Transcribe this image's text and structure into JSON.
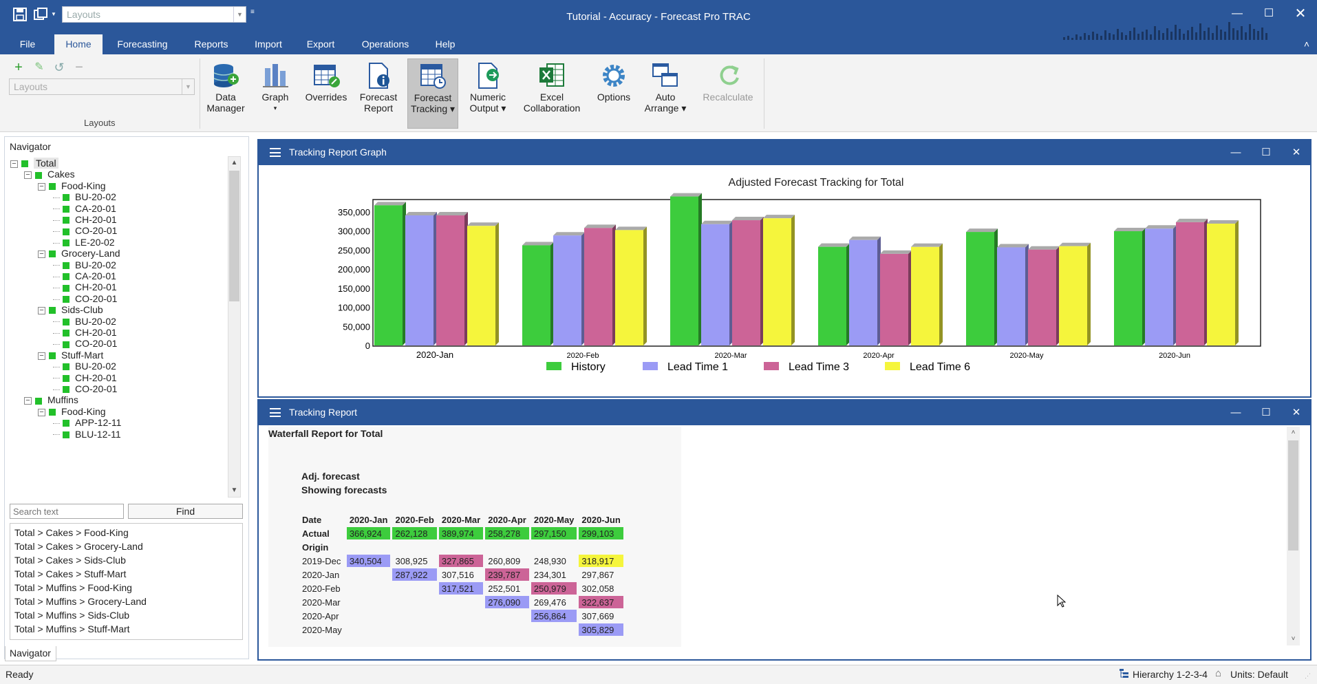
{
  "window": {
    "title": "Tutorial - Accuracy - Forecast Pro TRAC",
    "layouts_placeholder": "Layouts"
  },
  "menu": {
    "tabs": [
      "File",
      "Home",
      "Forecasting",
      "Reports",
      "Import",
      "Export",
      "Operations",
      "Help"
    ],
    "active": "Home"
  },
  "ribbon": {
    "layouts_placeholder": "Layouts",
    "layouts_group_label": "Layouts",
    "buttons": {
      "data_manager": [
        "Data",
        "Manager"
      ],
      "graph": [
        "Graph",
        "▾"
      ],
      "overrides": [
        "Overrides",
        ""
      ],
      "forecast_report": [
        "Forecast",
        "Report"
      ],
      "forecast_tracking": [
        "Forecast",
        "Tracking ▾"
      ],
      "numeric_output": [
        "Numeric",
        "Output ▾"
      ],
      "excel_collaboration": [
        "Excel",
        "Collaboration"
      ],
      "options": [
        "Options",
        ""
      ],
      "auto_arrange": [
        "Auto",
        "Arrange ▾"
      ],
      "recalculate": [
        "Recalculate",
        ""
      ]
    }
  },
  "navigator": {
    "title": "Navigator",
    "tree": [
      {
        "label": "Total",
        "level": 0,
        "toggle": "−",
        "selected": true
      },
      {
        "label": "Cakes",
        "level": 1,
        "toggle": "−"
      },
      {
        "label": "Food-King",
        "level": 2,
        "toggle": "−"
      },
      {
        "label": "BU-20-02",
        "level": 3
      },
      {
        "label": "CA-20-01",
        "level": 3
      },
      {
        "label": "CH-20-01",
        "level": 3
      },
      {
        "label": "CO-20-01",
        "level": 3
      },
      {
        "label": "LE-20-02",
        "level": 3
      },
      {
        "label": "Grocery-Land",
        "level": 2,
        "toggle": "−"
      },
      {
        "label": "BU-20-02",
        "level": 3
      },
      {
        "label": "CA-20-01",
        "level": 3
      },
      {
        "label": "CH-20-01",
        "level": 3
      },
      {
        "label": "CO-20-01",
        "level": 3
      },
      {
        "label": "Sids-Club",
        "level": 2,
        "toggle": "−"
      },
      {
        "label": "BU-20-02",
        "level": 3
      },
      {
        "label": "CH-20-01",
        "level": 3
      },
      {
        "label": "CO-20-01",
        "level": 3
      },
      {
        "label": "Stuff-Mart",
        "level": 2,
        "toggle": "−"
      },
      {
        "label": "BU-20-02",
        "level": 3
      },
      {
        "label": "CH-20-01",
        "level": 3
      },
      {
        "label": "CO-20-01",
        "level": 3
      },
      {
        "label": "Muffins",
        "level": 1,
        "toggle": "−"
      },
      {
        "label": "Food-King",
        "level": 2,
        "toggle": "−"
      },
      {
        "label": "APP-12-11",
        "level": 3
      },
      {
        "label": "BLU-12-11",
        "level": 3
      }
    ],
    "search_placeholder": "Search text",
    "find_label": "Find",
    "paths": [
      "Total > Cakes > Food-King",
      "Total > Cakes > Grocery-Land",
      "Total > Cakes > Sids-Club",
      "Total > Cakes > Stuff-Mart",
      "Total > Muffins > Food-King",
      "Total > Muffins > Grocery-Land",
      "Total > Muffins > Sids-Club",
      "Total > Muffins > Stuff-Mart"
    ],
    "tab_label": "Navigator"
  },
  "graph_panel": {
    "title": "Tracking Report Graph"
  },
  "chart_data": {
    "type": "bar",
    "title": "Adjusted Forecast Tracking for Total",
    "categories": [
      "2020-Jan",
      "2020-Feb",
      "2020-Mar",
      "2020-Apr",
      "2020-May",
      "2020-Jun"
    ],
    "series": [
      {
        "name": "History",
        "color": "#3dcc3d",
        "values": [
          366924,
          262128,
          389974,
          258278,
          297150,
          299103
        ]
      },
      {
        "name": "Lead Time 1",
        "color": "#9b9bf5",
        "values": [
          340504,
          287922,
          317521,
          276090,
          256864,
          305829
        ]
      },
      {
        "name": "Lead Time 3",
        "color": "#cc6497",
        "values": [
          340504,
          307516,
          327865,
          239787,
          250979,
          322637
        ]
      },
      {
        "name": "Lead Time 6",
        "color": "#f5f53c",
        "values": [
          313000,
          302058,
          333000,
          258000,
          260000,
          318917
        ]
      }
    ],
    "ylim": [
      0,
      400000
    ],
    "yticks": [
      "0",
      "50,000",
      "100,000",
      "150,000",
      "200,000",
      "250,000",
      "300,000",
      "350,000"
    ],
    "legend_position": "bottom"
  },
  "report_panel": {
    "title": "Tracking Report",
    "report_title": "Waterfall Report for Total",
    "subtitle1": "Adj. forecast",
    "subtitle2": "Showing forecasts",
    "date_label": "Date",
    "actual_label": "Actual",
    "origin_label": "Origin",
    "columns": [
      "2020-Jan",
      "2020-Feb",
      "2020-Mar",
      "2020-Apr",
      "2020-May",
      "2020-Jun"
    ],
    "actual": [
      "366,924",
      "262,128",
      "389,974",
      "258,278",
      "297,150",
      "299,103"
    ],
    "rows": [
      {
        "origin": "2019-Dec",
        "cells": [
          "340,504",
          "308,925",
          "327,865",
          "260,809",
          "248,930",
          "318,917"
        ],
        "colors": [
          "#9b9bf5",
          "",
          "#cc6497",
          "",
          "",
          "#f5f53c"
        ]
      },
      {
        "origin": "2020-Jan",
        "cells": [
          "",
          "287,922",
          "307,516",
          "239,787",
          "234,301",
          "297,867"
        ],
        "colors": [
          "",
          "#9b9bf5",
          "",
          "#cc6497",
          "",
          ""
        ]
      },
      {
        "origin": "2020-Feb",
        "cells": [
          "",
          "",
          "317,521",
          "252,501",
          "250,979",
          "302,058"
        ],
        "colors": [
          "",
          "",
          "#9b9bf5",
          "",
          "#cc6497",
          ""
        ]
      },
      {
        "origin": "2020-Mar",
        "cells": [
          "",
          "",
          "",
          "276,090",
          "269,476",
          "322,637"
        ],
        "colors": [
          "",
          "",
          "",
          "#9b9bf5",
          "",
          "#cc6497"
        ]
      },
      {
        "origin": "2020-Apr",
        "cells": [
          "",
          "",
          "",
          "",
          "256,864",
          "307,669"
        ],
        "colors": [
          "",
          "",
          "",
          "",
          "#9b9bf5",
          ""
        ]
      },
      {
        "origin": "2020-May",
        "cells": [
          "",
          "",
          "",
          "",
          "",
          "305,829"
        ],
        "colors": [
          "",
          "",
          "",
          "",
          "",
          "#9b9bf5"
        ]
      }
    ],
    "actual_color": "#3dcc3d"
  },
  "status": {
    "left": "Ready",
    "hierarchy": "Hierarchy 1-2-3-4",
    "units": "Units: Default"
  }
}
